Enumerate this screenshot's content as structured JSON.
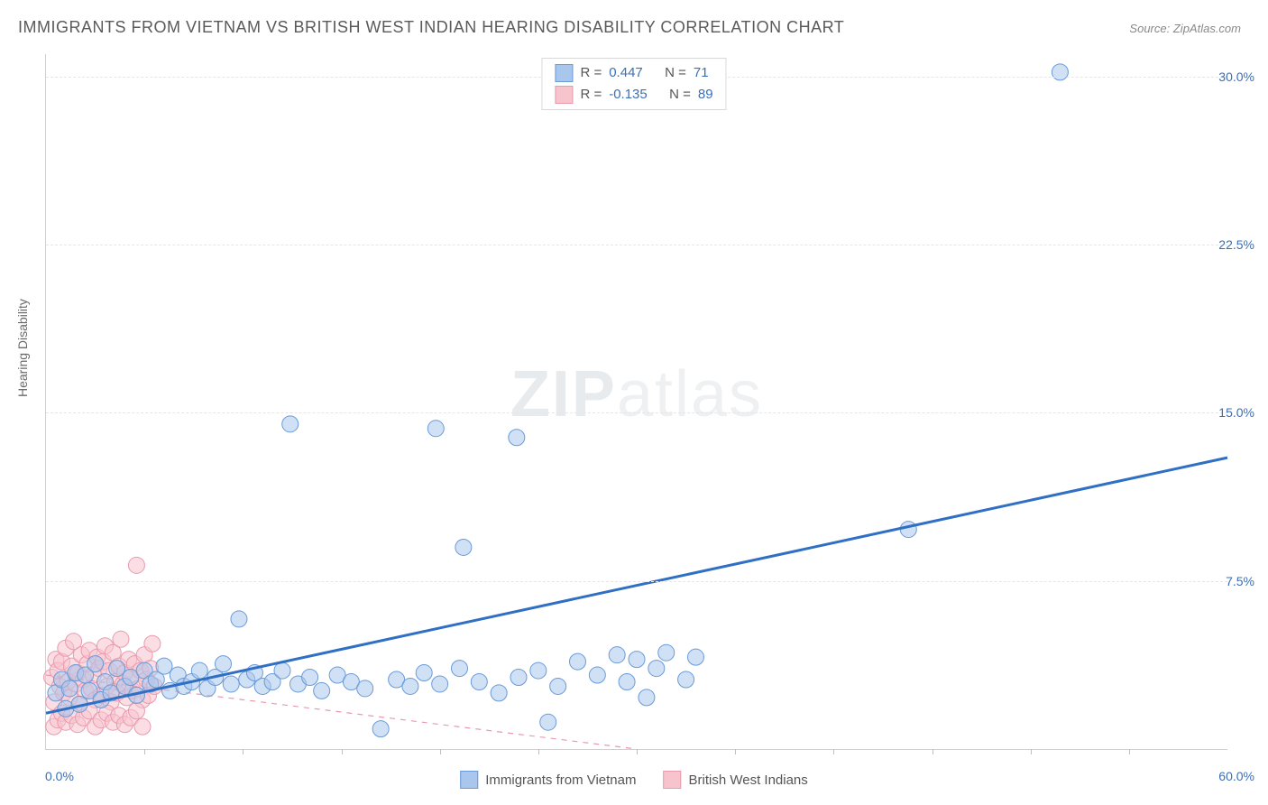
{
  "title": "IMMIGRANTS FROM VIETNAM VS BRITISH WEST INDIAN HEARING DISABILITY CORRELATION CHART",
  "source_label": "Source:",
  "source_name": "ZipAtlas.com",
  "ylabel": "Hearing Disability",
  "watermark_bold": "ZIP",
  "watermark_rest": "atlas",
  "chart": {
    "type": "scatter",
    "background_color": "#ffffff",
    "grid_color": "#e6e6e6",
    "axis_color": "#d0d0d0",
    "tick_label_color": "#3b6fb6",
    "ylabel_color": "#6a6a6a",
    "title_color": "#5a5a5a",
    "xlim": [
      0,
      60
    ],
    "ylim": [
      0,
      31
    ],
    "xtick_start": 0,
    "xtick_major_label": "60.0%",
    "xtick_zero_label": "0.0%",
    "yticks": [
      {
        "v": 7.5,
        "label": "7.5%"
      },
      {
        "v": 15.0,
        "label": "15.0%"
      },
      {
        "v": 22.5,
        "label": "22.5%"
      },
      {
        "v": 30.0,
        "label": "30.0%"
      }
    ],
    "xtick_minor_step": 5,
    "marker_radius": 9,
    "marker_opacity": 0.55,
    "marker_stroke_width": 1,
    "trend_line_width": 3,
    "trend_dash_width": 1.2,
    "series": [
      {
        "name": "Immigrants from Vietnam",
        "fill": "#a9c6ec",
        "stroke": "#6a9bd8",
        "line_color": "#2f6fc4",
        "line_style": "solid",
        "R": "0.447",
        "N": "71",
        "trend": {
          "x1": 0,
          "y1": 1.6,
          "x2": 60,
          "y2": 13.0
        },
        "points": [
          [
            0.5,
            2.5
          ],
          [
            0.8,
            3.1
          ],
          [
            1.0,
            1.8
          ],
          [
            1.2,
            2.7
          ],
          [
            1.5,
            3.4
          ],
          [
            1.7,
            2.0
          ],
          [
            2.0,
            3.3
          ],
          [
            2.2,
            2.6
          ],
          [
            2.5,
            3.8
          ],
          [
            2.8,
            2.2
          ],
          [
            3.0,
            3.0
          ],
          [
            3.3,
            2.5
          ],
          [
            3.6,
            3.6
          ],
          [
            4.0,
            2.8
          ],
          [
            4.3,
            3.2
          ],
          [
            4.6,
            2.4
          ],
          [
            5.0,
            3.5
          ],
          [
            5.3,
            2.9
          ],
          [
            5.6,
            3.1
          ],
          [
            6.0,
            3.7
          ],
          [
            6.3,
            2.6
          ],
          [
            6.7,
            3.3
          ],
          [
            7.0,
            2.8
          ],
          [
            7.4,
            3.0
          ],
          [
            7.8,
            3.5
          ],
          [
            8.2,
            2.7
          ],
          [
            8.6,
            3.2
          ],
          [
            9.0,
            3.8
          ],
          [
            9.4,
            2.9
          ],
          [
            9.8,
            5.8
          ],
          [
            10.2,
            3.1
          ],
          [
            10.6,
            3.4
          ],
          [
            11.0,
            2.8
          ],
          [
            11.5,
            3.0
          ],
          [
            12.0,
            3.5
          ],
          [
            12.4,
            14.5
          ],
          [
            12.8,
            2.9
          ],
          [
            13.4,
            3.2
          ],
          [
            14.0,
            2.6
          ],
          [
            14.8,
            3.3
          ],
          [
            15.5,
            3.0
          ],
          [
            16.2,
            2.7
          ],
          [
            17.0,
            0.9
          ],
          [
            17.8,
            3.1
          ],
          [
            18.5,
            2.8
          ],
          [
            19.2,
            3.4
          ],
          [
            19.8,
            14.3
          ],
          [
            20.0,
            2.9
          ],
          [
            21.0,
            3.6
          ],
          [
            21.2,
            9.0
          ],
          [
            22.0,
            3.0
          ],
          [
            23.0,
            2.5
          ],
          [
            23.9,
            13.9
          ],
          [
            24.0,
            3.2
          ],
          [
            25.0,
            3.5
          ],
          [
            25.5,
            1.2
          ],
          [
            26.0,
            2.8
          ],
          [
            27.0,
            3.9
          ],
          [
            28.0,
            3.3
          ],
          [
            29.0,
            4.2
          ],
          [
            29.5,
            3.0
          ],
          [
            30.0,
            4.0
          ],
          [
            30.5,
            2.3
          ],
          [
            31.0,
            3.6
          ],
          [
            31.5,
            4.3
          ],
          [
            32.5,
            3.1
          ],
          [
            33.0,
            4.1
          ],
          [
            43.8,
            9.8
          ],
          [
            51.5,
            30.2
          ]
        ]
      },
      {
        "name": "British West Indians",
        "fill": "#f7c3cd",
        "stroke": "#e99aad",
        "line_color": "#e99aad",
        "line_style": "dashed",
        "R": "-0.135",
        "N": "89",
        "trend": {
          "x1": 0,
          "y1": 3.3,
          "x2": 30,
          "y2": 0.0
        },
        "points": [
          [
            0.3,
            3.2
          ],
          [
            0.4,
            2.1
          ],
          [
            0.5,
            4.0
          ],
          [
            0.6,
            3.5
          ],
          [
            0.7,
            2.8
          ],
          [
            0.8,
            3.9
          ],
          [
            0.9,
            2.5
          ],
          [
            1.0,
            4.5
          ],
          [
            1.1,
            3.0
          ],
          [
            1.2,
            2.3
          ],
          [
            1.3,
            3.7
          ],
          [
            1.4,
            4.8
          ],
          [
            1.5,
            2.9
          ],
          [
            1.6,
            3.4
          ],
          [
            1.7,
            2.0
          ],
          [
            1.8,
            4.2
          ],
          [
            1.9,
            3.1
          ],
          [
            2.0,
            2.6
          ],
          [
            2.1,
            3.8
          ],
          [
            2.2,
            4.4
          ],
          [
            2.3,
            2.7
          ],
          [
            2.4,
            3.3
          ],
          [
            2.5,
            2.2
          ],
          [
            2.6,
            4.1
          ],
          [
            2.7,
            3.6
          ],
          [
            2.8,
            2.4
          ],
          [
            2.9,
            3.9
          ],
          [
            3.0,
            4.6
          ],
          [
            3.1,
            2.8
          ],
          [
            3.2,
            3.5
          ],
          [
            3.3,
            2.1
          ],
          [
            3.4,
            4.3
          ],
          [
            3.5,
            3.0
          ],
          [
            3.6,
            2.5
          ],
          [
            3.7,
            3.7
          ],
          [
            3.8,
            4.9
          ],
          [
            3.9,
            2.9
          ],
          [
            4.0,
            3.4
          ],
          [
            4.1,
            2.3
          ],
          [
            4.2,
            4.0
          ],
          [
            4.3,
            3.2
          ],
          [
            4.4,
            2.6
          ],
          [
            4.5,
            3.8
          ],
          [
            4.6,
            8.2
          ],
          [
            4.7,
            2.7
          ],
          [
            4.8,
            3.5
          ],
          [
            4.9,
            2.2
          ],
          [
            5.0,
            4.2
          ],
          [
            5.1,
            3.1
          ],
          [
            5.2,
            2.4
          ],
          [
            5.3,
            3.6
          ],
          [
            5.4,
            4.7
          ],
          [
            5.5,
            2.8
          ],
          [
            0.4,
            1.0
          ],
          [
            0.6,
            1.3
          ],
          [
            0.8,
            1.6
          ],
          [
            1.0,
            1.2
          ],
          [
            1.3,
            1.5
          ],
          [
            1.6,
            1.1
          ],
          [
            1.9,
            1.4
          ],
          [
            2.2,
            1.7
          ],
          [
            2.5,
            1.0
          ],
          [
            2.8,
            1.3
          ],
          [
            3.1,
            1.6
          ],
          [
            3.4,
            1.2
          ],
          [
            3.7,
            1.5
          ],
          [
            4.0,
            1.1
          ],
          [
            4.3,
            1.4
          ],
          [
            4.6,
            1.7
          ],
          [
            4.9,
            1.0
          ]
        ]
      }
    ]
  },
  "legend_top": {
    "R_label": "R  =",
    "N_label": "N  ="
  },
  "bottom_legend": {
    "series1": "Immigrants from Vietnam",
    "series2": "British West Indians"
  }
}
